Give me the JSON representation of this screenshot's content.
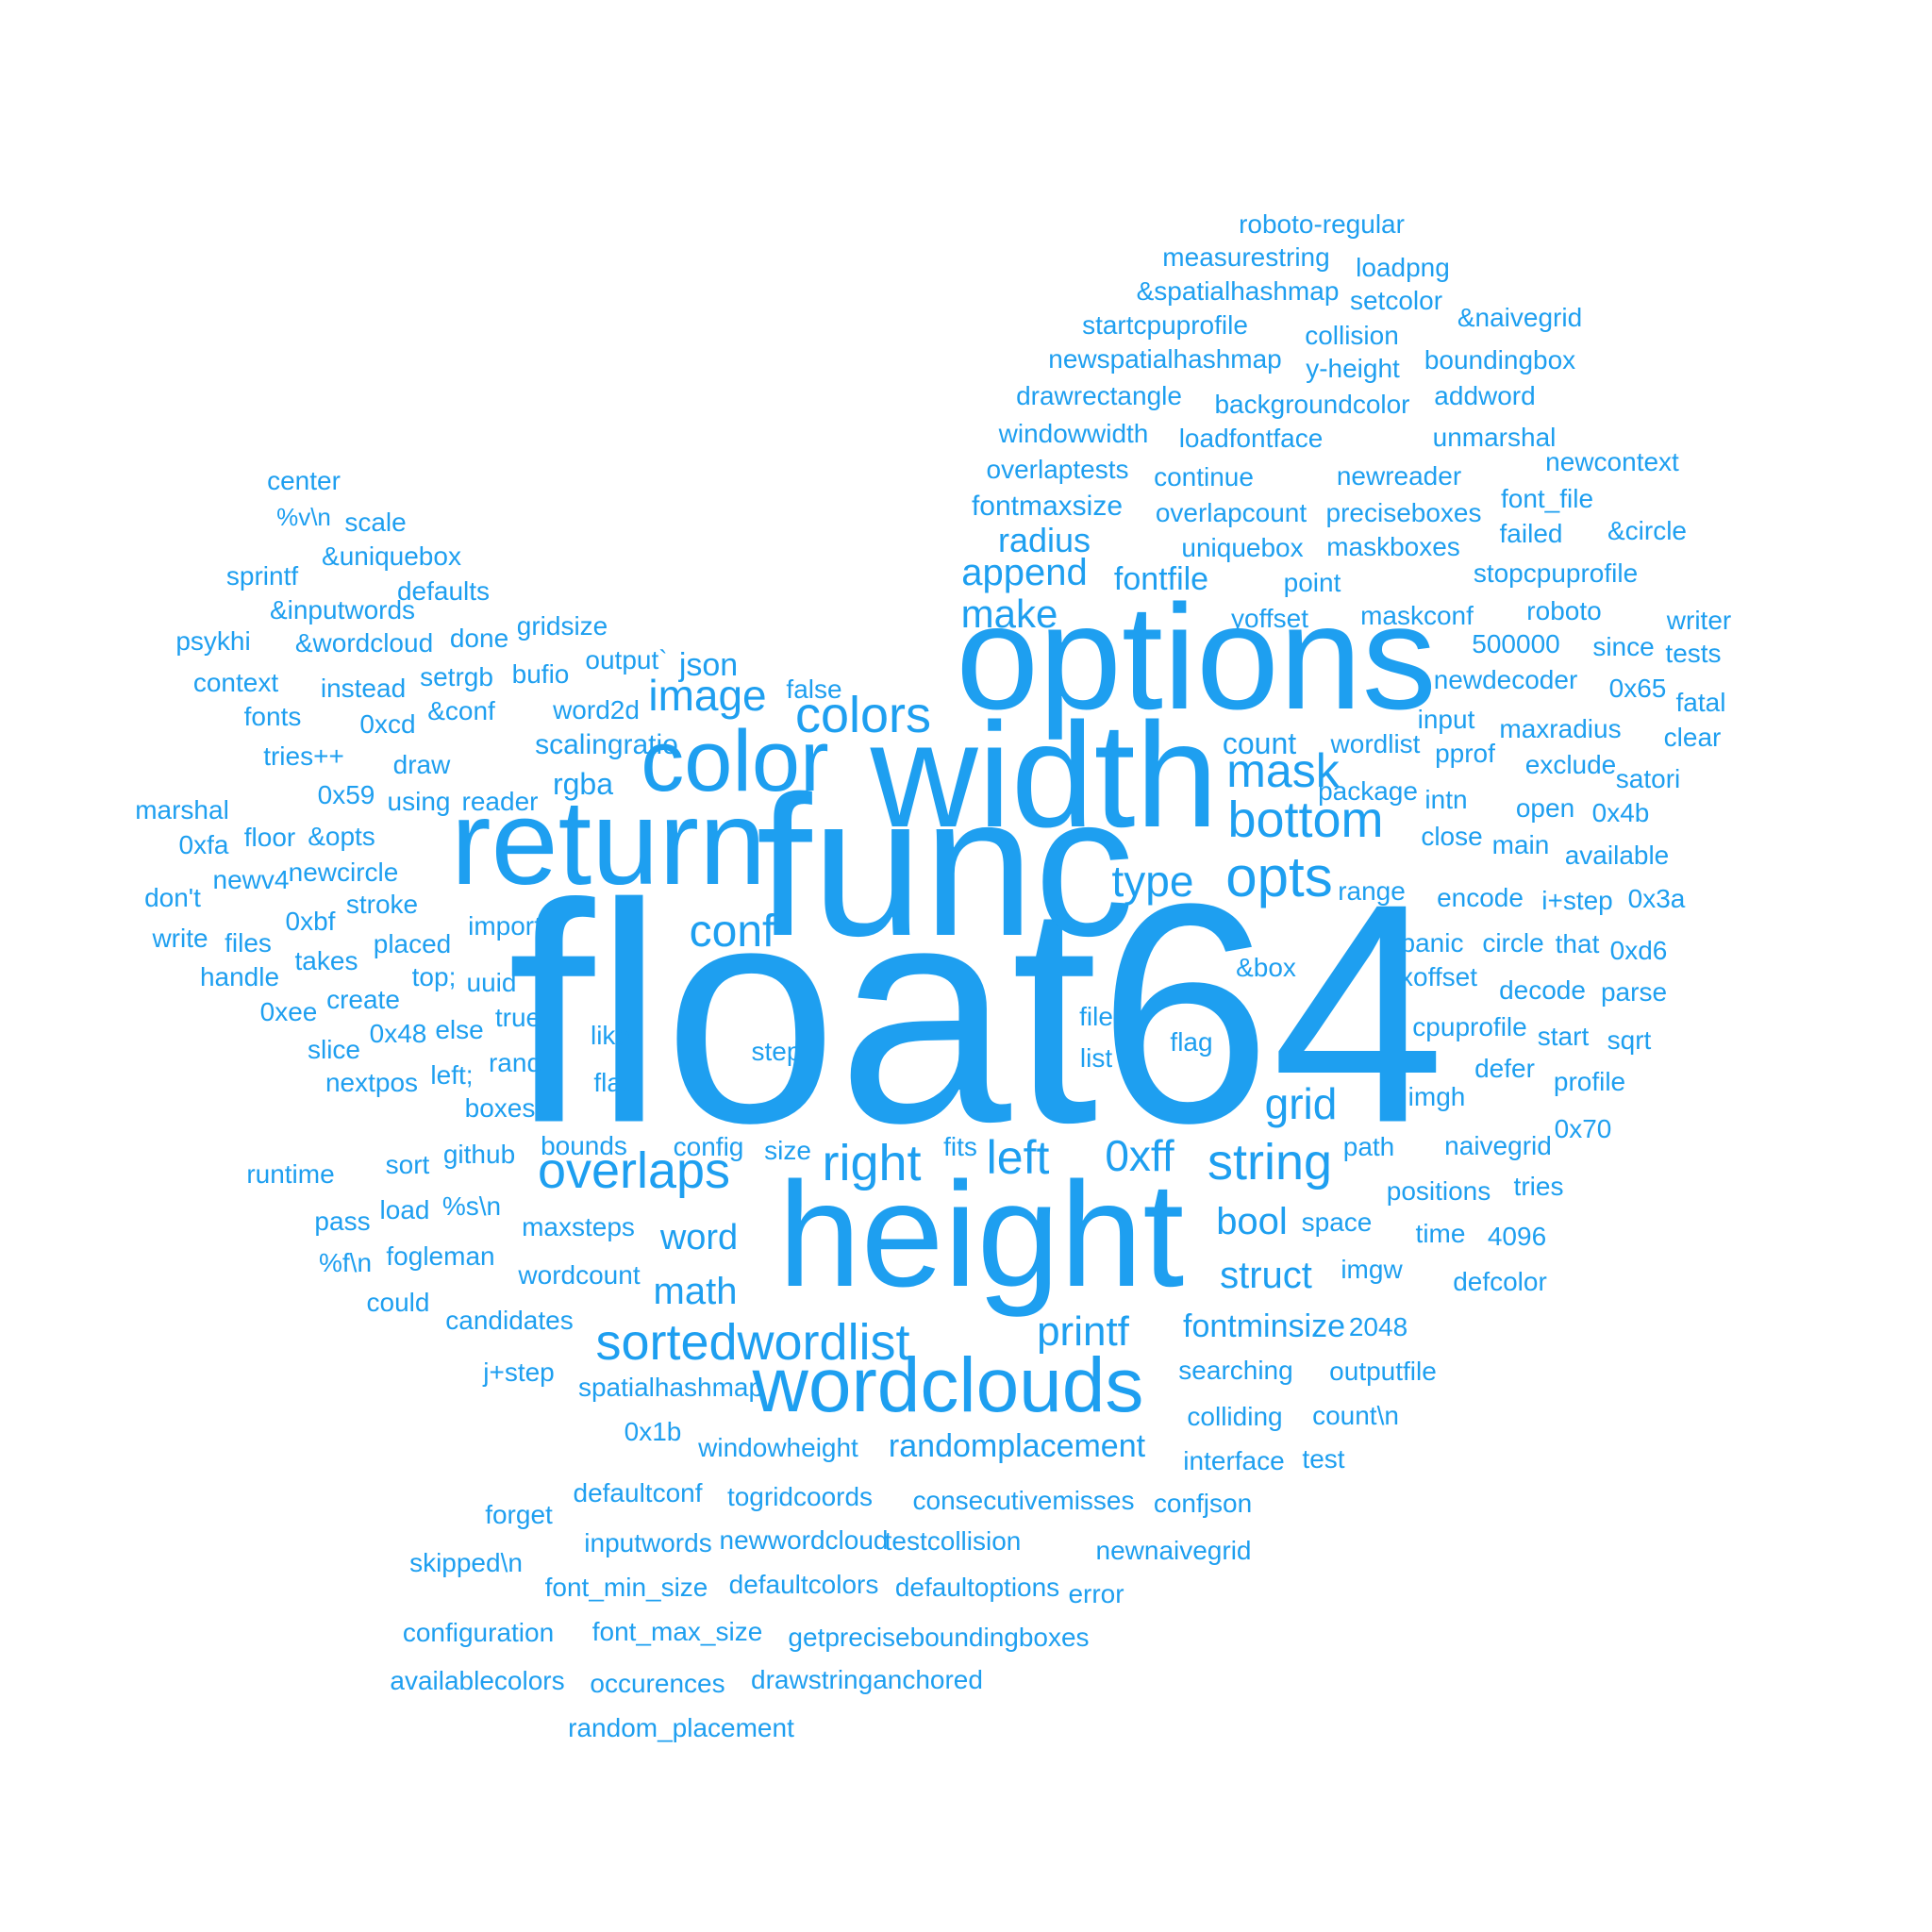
{
  "color": "#1e9ff0",
  "background": "#ffffff",
  "words": [
    {
      "text": "float64"
    },
    {
      "text": "func"
    },
    {
      "text": "options"
    },
    {
      "text": "width"
    },
    {
      "text": "return"
    },
    {
      "text": "height"
    },
    {
      "text": "color"
    },
    {
      "text": "wordclouds"
    },
    {
      "text": "colors"
    },
    {
      "text": "bottom"
    },
    {
      "text": "opts"
    },
    {
      "text": "overlaps"
    },
    {
      "text": "sortedwordlist"
    },
    {
      "text": "right"
    },
    {
      "text": "left"
    },
    {
      "text": "string"
    },
    {
      "text": "mask"
    },
    {
      "text": "conf"
    },
    {
      "text": "image"
    },
    {
      "text": "0xff"
    },
    {
      "text": "type"
    },
    {
      "text": "grid"
    },
    {
      "text": "make"
    },
    {
      "text": "append"
    },
    {
      "text": "printf"
    },
    {
      "text": "bool"
    },
    {
      "text": "struct"
    },
    {
      "text": "word"
    },
    {
      "text": "math"
    },
    {
      "text": "radius"
    },
    {
      "text": "randomplacement"
    },
    {
      "text": "fontminsize"
    },
    {
      "text": "fontfile"
    },
    {
      "text": "count"
    },
    {
      "text": "rgba"
    },
    {
      "text": "fontmaxsize"
    },
    {
      "text": "scalingratio"
    },
    {
      "text": "json"
    },
    {
      "text": "roboto-regular"
    },
    {
      "text": "measurestring"
    },
    {
      "text": "loadpng"
    },
    {
      "text": "&spatialhashmap"
    },
    {
      "text": "setcolor"
    },
    {
      "text": "startcpuprofile"
    },
    {
      "text": "collision"
    },
    {
      "text": "&naivegrid"
    },
    {
      "text": "newspatialhashmap"
    },
    {
      "text": "y-height"
    },
    {
      "text": "boundingbox"
    },
    {
      "text": "drawrectangle"
    },
    {
      "text": "backgroundcolor"
    },
    {
      "text": "addword"
    },
    {
      "text": "windowwidth"
    },
    {
      "text": "loadfontface"
    },
    {
      "text": "unmarshal"
    },
    {
      "text": "overlaptests"
    },
    {
      "text": "continue"
    },
    {
      "text": "newreader"
    },
    {
      "text": "newcontext"
    },
    {
      "text": "overlapcount"
    },
    {
      "text": "preciseboxes"
    },
    {
      "text": "font_file"
    },
    {
      "text": "uniquebox"
    },
    {
      "text": "maskboxes"
    },
    {
      "text": "failed"
    },
    {
      "text": "&circle"
    },
    {
      "text": "point"
    },
    {
      "text": "stopcpuprofile"
    },
    {
      "text": "yoffset"
    },
    {
      "text": "maskconf"
    },
    {
      "text": "roboto"
    },
    {
      "text": "writer"
    },
    {
      "text": "500000"
    },
    {
      "text": "since"
    },
    {
      "text": "tests"
    },
    {
      "text": "newdecoder"
    },
    {
      "text": "0x65"
    },
    {
      "text": "input"
    },
    {
      "text": "fatal"
    },
    {
      "text": "maxradius"
    },
    {
      "text": "clear"
    },
    {
      "text": "wordlist"
    },
    {
      "text": "pprof"
    },
    {
      "text": "exclude"
    },
    {
      "text": "satori"
    },
    {
      "text": "package"
    },
    {
      "text": "intn"
    },
    {
      "text": "open"
    },
    {
      "text": "0x4b"
    },
    {
      "text": "close"
    },
    {
      "text": "main"
    },
    {
      "text": "available"
    },
    {
      "text": "range"
    },
    {
      "text": "encode"
    },
    {
      "text": "i+step"
    },
    {
      "text": "0x3a"
    },
    {
      "text": "panic"
    },
    {
      "text": "circle"
    },
    {
      "text": "that"
    },
    {
      "text": "0xd6"
    },
    {
      "text": "&box"
    },
    {
      "text": "xoffset"
    },
    {
      "text": "decode"
    },
    {
      "text": "parse"
    },
    {
      "text": "file"
    },
    {
      "text": "flag"
    },
    {
      "text": "cpuprofile"
    },
    {
      "text": "start"
    },
    {
      "text": "sqrt"
    },
    {
      "text": "list"
    },
    {
      "text": "defer"
    },
    {
      "text": "profile"
    },
    {
      "text": "imgh"
    },
    {
      "text": "0x70"
    },
    {
      "text": "path"
    },
    {
      "text": "naivegrid"
    },
    {
      "text": "positions"
    },
    {
      "text": "tries"
    },
    {
      "text": "space"
    },
    {
      "text": "time"
    },
    {
      "text": "4096"
    },
    {
      "text": "imgw"
    },
    {
      "text": "defcolor"
    },
    {
      "text": "2048"
    },
    {
      "text": "searching"
    },
    {
      "text": "outputfile"
    },
    {
      "text": "colliding"
    },
    {
      "text": "count\\n"
    },
    {
      "text": "interface"
    },
    {
      "text": "test"
    },
    {
      "text": "confjson"
    },
    {
      "text": "newnaivegrid"
    },
    {
      "text": "error"
    },
    {
      "text": "center"
    },
    {
      "text": "%v\\n"
    },
    {
      "text": "scale"
    },
    {
      "text": "&uniquebox"
    },
    {
      "text": "sprintf"
    },
    {
      "text": "defaults"
    },
    {
      "text": "&inputwords"
    },
    {
      "text": "gridsize"
    },
    {
      "text": "psykhi"
    },
    {
      "text": "&wordcloud"
    },
    {
      "text": "done"
    },
    {
      "text": "output`"
    },
    {
      "text": "context"
    },
    {
      "text": "instead"
    },
    {
      "text": "setrgb"
    },
    {
      "text": "bufio"
    },
    {
      "text": "false"
    },
    {
      "text": "fonts"
    },
    {
      "text": "0xcd"
    },
    {
      "text": "&conf"
    },
    {
      "text": "word2d"
    },
    {
      "text": "tries++"
    },
    {
      "text": "draw"
    },
    {
      "text": "0x59"
    },
    {
      "text": "using"
    },
    {
      "text": "reader"
    },
    {
      "text": "marshal"
    },
    {
      "text": "0xfa"
    },
    {
      "text": "floor"
    },
    {
      "text": "&opts"
    },
    {
      "text": "newv4"
    },
    {
      "text": "newcircle"
    },
    {
      "text": "don't"
    },
    {
      "text": "stroke"
    },
    {
      "text": "0xbf"
    },
    {
      "text": "import"
    },
    {
      "text": "write"
    },
    {
      "text": "files"
    },
    {
      "text": "placed"
    },
    {
      "text": "takes"
    },
    {
      "text": "handle"
    },
    {
      "text": "top;"
    },
    {
      "text": "uuid"
    },
    {
      "text": "0xee"
    },
    {
      "text": "create"
    },
    {
      "text": "true"
    },
    {
      "text": "like"
    },
    {
      "text": "0x48"
    },
    {
      "text": "else"
    },
    {
      "text": "slice"
    },
    {
      "text": "step"
    },
    {
      "text": "left;"
    },
    {
      "text": "rand"
    },
    {
      "text": "nextpos"
    },
    {
      "text": "flat"
    },
    {
      "text": "boxes"
    },
    {
      "text": "bounds"
    },
    {
      "text": "config"
    },
    {
      "text": "size"
    },
    {
      "text": "fits"
    },
    {
      "text": "runtime"
    },
    {
      "text": "sort"
    },
    {
      "text": "github"
    },
    {
      "text": "pass"
    },
    {
      "text": "load"
    },
    {
      "text": "%s\\n"
    },
    {
      "text": "maxsteps"
    },
    {
      "text": "%f\\n"
    },
    {
      "text": "fogleman"
    },
    {
      "text": "wordcount"
    },
    {
      "text": "could"
    },
    {
      "text": "candidates"
    },
    {
      "text": "j+step"
    },
    {
      "text": "spatialhashmap"
    },
    {
      "text": "0x1b"
    },
    {
      "text": "windowheight"
    },
    {
      "text": "defaultconf"
    },
    {
      "text": "togridcoords"
    },
    {
      "text": "consecutivemisses"
    },
    {
      "text": "forget"
    },
    {
      "text": "inputwords"
    },
    {
      "text": "newwordcloud"
    },
    {
      "text": "testcollision"
    },
    {
      "text": "skipped\\n"
    },
    {
      "text": "font_min_size"
    },
    {
      "text": "defaultcolors"
    },
    {
      "text": "defaultoptions"
    },
    {
      "text": "configuration"
    },
    {
      "text": "font_max_size"
    },
    {
      "text": "getpreciseboundingboxes"
    },
    {
      "text": "availablecolors"
    },
    {
      "text": "occurences"
    },
    {
      "text": "drawstringanchored"
    },
    {
      "text": "random_placement"
    }
  ]
}
